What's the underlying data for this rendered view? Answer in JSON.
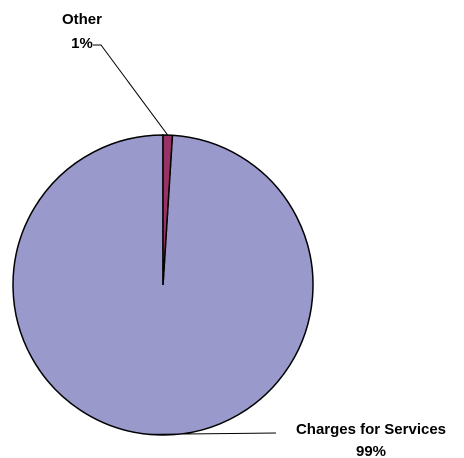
{
  "chart_data": {
    "type": "pie",
    "slices": [
      {
        "label": "Charges for Services",
        "value": 99,
        "value_label": "99%",
        "color": "#9999CC"
      },
      {
        "label": "Other",
        "value": 1,
        "value_label": "1%",
        "color": "#993366"
      }
    ],
    "start_angle_deg": 0,
    "direction": "counterclockwise",
    "slice_outline_color": "#000000",
    "leader_line_color": "#000000",
    "legend": "none"
  }
}
